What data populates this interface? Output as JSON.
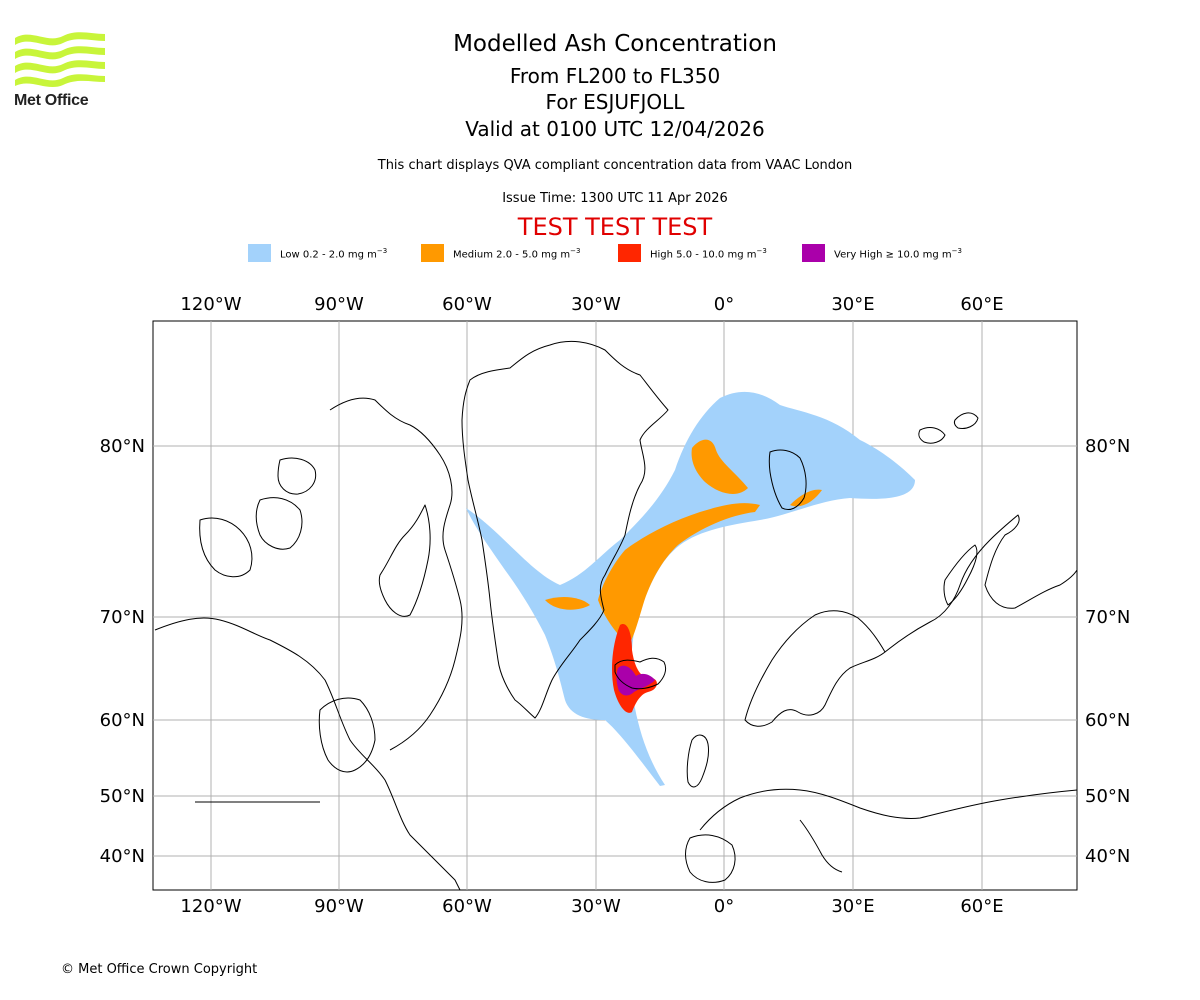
{
  "header": {
    "logo_text": "Met Office",
    "title": "Modelled Ash Concentration",
    "levels": "From FL200 to FL350",
    "volcano": "For ESJUFJOLL",
    "valid": "Valid at 0100 UTC 12/04/2026",
    "description": "This chart displays QVA compliant concentration data from VAAC London",
    "issue_time": "Issue Time: 1300 UTC 11 Apr 2026",
    "test_banner": "TEST TEST TEST"
  },
  "legend": [
    {
      "label": "Low 0.2 - 2.0 mg m",
      "unit_exp": "−3",
      "color": "#a3d2fb"
    },
    {
      "label": "Medium 2.0 - 5.0 mg m",
      "unit_exp": "−3",
      "color": "#ff9900"
    },
    {
      "label": "High 5.0 - 10.0 mg m",
      "unit_exp": "−3",
      "color": "#ff2600"
    },
    {
      "label": "Very High  ≥  10.0 mg m",
      "unit_exp": "−3",
      "color": "#aa00aa"
    }
  ],
  "map": {
    "lon_labels": [
      "120°W",
      "90°W",
      "60°W",
      "30°W",
      "0°",
      "30°E",
      "60°E"
    ],
    "lat_labels": [
      "80°N",
      "70°N",
      "60°N",
      "50°N",
      "40°N"
    ]
  },
  "footer": {
    "copyright": "© Met Office Crown Copyright"
  }
}
